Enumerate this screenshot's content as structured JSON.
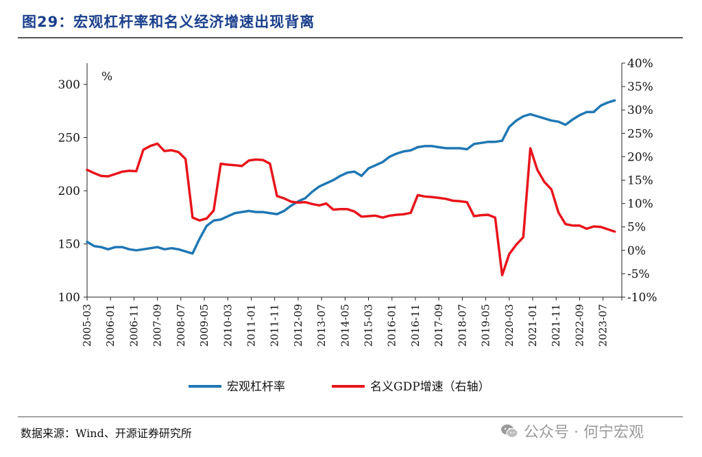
{
  "header": {
    "title": "图29：宏观杠杆率和名义经济增速出现背离"
  },
  "footer": {
    "source": "数据来源：Wind、开源证券研究所",
    "watermark": "公众号 · 何宁宏观",
    "watermark_icon": "wechat-icon"
  },
  "colors": {
    "leverage": "#1f77b4",
    "gdp": "#e8141b",
    "title": "#1a3f8c"
  },
  "chart_data": {
    "type": "line",
    "unit_label": "%",
    "x_tick_labels": [
      "2005-03",
      "2006-01",
      "2006-11",
      "2007-09",
      "2008-07",
      "2009-05",
      "2010-03",
      "2011-01",
      "2011-11",
      "2012-09",
      "2013-07",
      "2014-05",
      "2015-03",
      "2016-01",
      "2016-11",
      "2017-09",
      "2018-07",
      "2019-05",
      "2020-03",
      "2021-01",
      "2021-11",
      "2022-09",
      "2023-07"
    ],
    "y_left": {
      "min": 100,
      "max": 320,
      "ticks": [
        100,
        150,
        200,
        250,
        300
      ]
    },
    "y_right": {
      "min": -10,
      "max": 40,
      "ticks": [
        "-10%",
        "-5%",
        "0%",
        "5%",
        "10%",
        "15%",
        "20%",
        "25%",
        "30%",
        "35%",
        "40%"
      ]
    },
    "series": [
      {
        "name": "宏观杠杆率",
        "axis": "left",
        "color": "#1f77b4",
        "x": [
          "2005-03",
          "2005-06",
          "2005-09",
          "2005-12",
          "2006-03",
          "2006-06",
          "2006-09",
          "2006-12",
          "2007-03",
          "2007-06",
          "2007-09",
          "2007-12",
          "2008-03",
          "2008-06",
          "2008-09",
          "2008-12",
          "2009-03",
          "2009-06",
          "2009-09",
          "2009-12",
          "2010-03",
          "2010-06",
          "2010-09",
          "2010-12",
          "2011-03",
          "2011-06",
          "2011-09",
          "2011-12",
          "2012-03",
          "2012-06",
          "2012-09",
          "2012-12",
          "2013-03",
          "2013-06",
          "2013-09",
          "2013-12",
          "2014-03",
          "2014-06",
          "2014-09",
          "2014-12",
          "2015-03",
          "2015-06",
          "2015-09",
          "2015-12",
          "2016-03",
          "2016-06",
          "2016-09",
          "2016-12",
          "2017-03",
          "2017-06",
          "2017-09",
          "2017-12",
          "2018-03",
          "2018-06",
          "2018-09",
          "2018-12",
          "2019-03",
          "2019-06",
          "2019-09",
          "2019-12",
          "2020-03",
          "2020-06",
          "2020-09",
          "2020-12",
          "2021-03",
          "2021-06",
          "2021-09",
          "2021-12",
          "2022-03",
          "2022-06",
          "2022-09",
          "2022-12",
          "2023-03",
          "2023-06",
          "2023-09",
          "2023-12"
        ],
        "values": [
          152,
          148,
          147,
          145,
          147,
          147,
          145,
          144,
          145,
          146,
          147,
          145,
          146,
          145,
          143,
          141,
          155,
          167,
          172,
          173,
          176,
          179,
          180,
          181,
          180,
          180,
          179,
          178,
          181,
          186,
          190,
          193,
          199,
          204,
          207,
          210,
          214,
          217,
          218,
          214,
          221,
          224,
          227,
          232,
          235,
          237,
          238,
          241,
          242,
          242,
          241,
          240,
          240,
          240,
          239,
          244,
          245,
          246,
          246,
          247,
          260,
          266,
          270,
          272,
          270,
          268,
          266,
          265,
          262,
          267,
          271,
          274,
          274,
          280,
          283,
          285
        ]
      },
      {
        "name": "名义GDP增速（右轴）",
        "axis": "right",
        "color": "#e8141b",
        "x": [
          "2005-03",
          "2005-06",
          "2005-09",
          "2005-12",
          "2006-03",
          "2006-06",
          "2006-09",
          "2006-12",
          "2007-03",
          "2007-06",
          "2007-09",
          "2007-12",
          "2008-03",
          "2008-06",
          "2008-09",
          "2008-12",
          "2009-03",
          "2009-06",
          "2009-09",
          "2009-12",
          "2010-03",
          "2010-06",
          "2010-09",
          "2010-12",
          "2011-03",
          "2011-06",
          "2011-09",
          "2011-12",
          "2012-03",
          "2012-06",
          "2012-09",
          "2012-12",
          "2013-03",
          "2013-06",
          "2013-09",
          "2013-12",
          "2014-03",
          "2014-06",
          "2014-09",
          "2014-12",
          "2015-03",
          "2015-06",
          "2015-09",
          "2015-12",
          "2016-03",
          "2016-06",
          "2016-09",
          "2016-12",
          "2017-03",
          "2017-06",
          "2017-09",
          "2017-12",
          "2018-03",
          "2018-06",
          "2018-09",
          "2018-12",
          "2019-03",
          "2019-06",
          "2019-09",
          "2019-12",
          "2020-03",
          "2020-06",
          "2020-09",
          "2020-12",
          "2021-03",
          "2021-06",
          "2021-09",
          "2021-12",
          "2022-03",
          "2022-06",
          "2022-09",
          "2022-12",
          "2023-03",
          "2023-06",
          "2023-09",
          "2023-12"
        ],
        "values": [
          17.2,
          16.5,
          15.9,
          15.8,
          16.3,
          16.8,
          17.0,
          16.9,
          21.5,
          22.3,
          22.8,
          21.2,
          21.4,
          21.0,
          19.5,
          7.0,
          6.4,
          6.8,
          8.5,
          18.5,
          18.3,
          18.2,
          18.0,
          19.2,
          19.4,
          19.3,
          18.5,
          11.6,
          11.1,
          10.4,
          10.2,
          10.3,
          9.9,
          9.6,
          10.0,
          8.7,
          8.8,
          8.8,
          8.3,
          7.2,
          7.3,
          7.4,
          7.0,
          7.4,
          7.6,
          7.7,
          8.0,
          11.8,
          11.5,
          11.4,
          11.2,
          11.0,
          10.6,
          10.5,
          10.3,
          7.3,
          7.5,
          7.6,
          7.0,
          -5.3,
          -0.8,
          1.2,
          2.8,
          21.8,
          17.2,
          14.6,
          13.0,
          8.1,
          5.6,
          5.3,
          5.3,
          4.6,
          5.1,
          5.0,
          4.5,
          4.0
        ]
      }
    ],
    "legend": {
      "placement": "bottom-center"
    }
  }
}
